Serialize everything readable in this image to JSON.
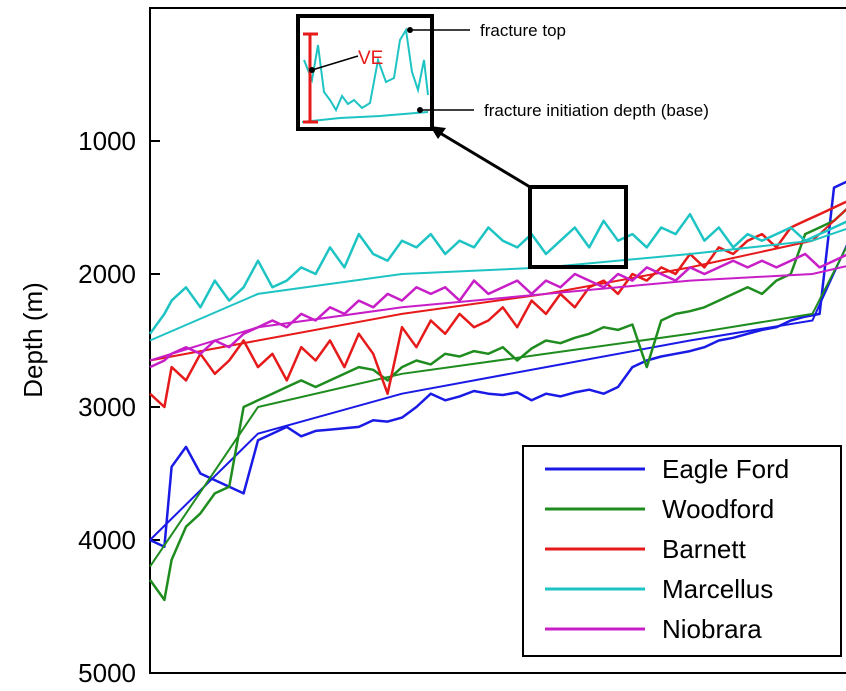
{
  "chart_data": {
    "type": "line",
    "ylabel": "Depth (m)",
    "ylim": [
      5000,
      0
    ],
    "y_inverted": true,
    "y_ticks": [
      1000,
      2000,
      3000,
      4000,
      5000
    ],
    "grid": false,
    "legend_position": "bottom-right",
    "x_range": [
      0,
      100
    ],
    "series": [
      {
        "name": "Eagle Ford",
        "color": "#1a1ae6",
        "x": [
          0,
          2,
          3,
          5,
          7,
          9,
          11,
          13,
          15,
          17,
          19,
          21,
          23,
          25,
          27,
          29,
          31,
          33,
          35,
          37,
          39,
          41,
          43,
          45,
          47,
          49,
          51,
          53,
          55,
          57,
          59,
          61,
          63,
          65,
          67,
          69,
          71,
          73,
          75,
          77,
          79,
          81,
          83,
          85,
          87,
          89,
          91,
          93,
          95,
          97,
          99,
          100
        ],
        "values": [
          4000,
          4050,
          3450,
          3300,
          3500,
          3550,
          3600,
          3650,
          3250,
          3200,
          3150,
          3220,
          3180,
          3170,
          3160,
          3150,
          3100,
          3110,
          3080,
          3000,
          2900,
          2950,
          2920,
          2880,
          2900,
          2910,
          2890,
          2950,
          2900,
          2920,
          2890,
          2870,
          2900,
          2850,
          2700,
          2650,
          2620,
          2600,
          2580,
          2550,
          2500,
          2480,
          2450,
          2420,
          2400,
          2350,
          2320,
          2300,
          1350,
          1300,
          1250,
          1000
        ],
        "trend": [
          4000,
          3200,
          2900,
          2700,
          2500,
          2350,
          1400
        ]
      },
      {
        "name": "Woodford",
        "color": "#1f8c1f",
        "x": [
          0,
          2,
          3,
          5,
          7,
          9,
          11,
          13,
          15,
          17,
          19,
          21,
          23,
          25,
          27,
          29,
          31,
          33,
          35,
          37,
          39,
          41,
          43,
          45,
          47,
          49,
          51,
          53,
          55,
          57,
          59,
          61,
          63,
          65,
          67,
          69,
          71,
          73,
          75,
          77,
          79,
          81,
          83,
          85,
          87,
          89,
          91,
          93,
          95,
          97,
          99,
          100
        ],
        "values": [
          4300,
          4450,
          4150,
          3900,
          3800,
          3650,
          3600,
          3000,
          2950,
          2900,
          2850,
          2800,
          2850,
          2800,
          2750,
          2700,
          2720,
          2800,
          2700,
          2650,
          2680,
          2600,
          2620,
          2580,
          2600,
          2550,
          2650,
          2560,
          2500,
          2520,
          2480,
          2450,
          2400,
          2420,
          2380,
          2700,
          2350,
          2300,
          2280,
          2250,
          2200,
          2150,
          2100,
          2150,
          2050,
          2000,
          1700,
          1650,
          1600,
          1500,
          1450,
          1400
        ],
        "trend": [
          4200,
          3000,
          2750,
          2600,
          2450,
          2300,
          1450
        ]
      },
      {
        "name": "Barnett",
        "color": "#e61a1a",
        "x": [
          0,
          2,
          3,
          5,
          7,
          9,
          11,
          13,
          15,
          17,
          19,
          21,
          23,
          25,
          27,
          29,
          31,
          33,
          35,
          37,
          39,
          41,
          43,
          45,
          47,
          49,
          51,
          53,
          55,
          57,
          59,
          61,
          63,
          65,
          67,
          69,
          71,
          73,
          75,
          77,
          79,
          81,
          83,
          85,
          87,
          89,
          91,
          93,
          95,
          97,
          99,
          100
        ],
        "values": [
          2900,
          3000,
          2700,
          2800,
          2600,
          2750,
          2650,
          2500,
          2700,
          2600,
          2800,
          2550,
          2650,
          2500,
          2700,
          2450,
          2600,
          2900,
          2400,
          2550,
          2350,
          2450,
          2300,
          2400,
          2350,
          2250,
          2400,
          2200,
          2300,
          2150,
          2250,
          2100,
          2050,
          2150,
          2000,
          2050,
          1950,
          2000,
          1850,
          1950,
          1800,
          1850,
          1750,
          1700,
          1800,
          1650,
          1600,
          1550,
          1500,
          1450,
          1400,
          1350
        ],
        "trend": [
          2650,
          2500,
          2300,
          2150,
          1950,
          1750,
          1350
        ]
      },
      {
        "name": "Marcellus",
        "color": "#1ec3c3",
        "x": [
          0,
          2,
          3,
          5,
          7,
          9,
          11,
          13,
          15,
          17,
          19,
          21,
          23,
          25,
          27,
          29,
          31,
          33,
          35,
          37,
          39,
          41,
          43,
          45,
          47,
          49,
          51,
          53,
          55,
          57,
          59,
          61,
          63,
          65,
          67,
          69,
          71,
          73,
          75,
          77,
          79,
          81,
          83,
          85,
          87,
          89,
          91,
          93,
          95,
          97,
          99,
          100
        ],
        "values": [
          2450,
          2300,
          2200,
          2100,
          2250,
          2050,
          2200,
          2100,
          1900,
          2100,
          2050,
          1950,
          2000,
          1800,
          1950,
          1700,
          1850,
          1900,
          1750,
          1800,
          1700,
          1850,
          1750,
          1800,
          1650,
          1750,
          1800,
          1700,
          1850,
          1750,
          1650,
          1800,
          1600,
          1750,
          1700,
          1800,
          1650,
          1700,
          1550,
          1750,
          1650,
          1800,
          1700,
          1750,
          1700,
          1650,
          1750,
          1700,
          1650,
          1600,
          1650,
          1600
        ],
        "trend": [
          2500,
          2150,
          2000,
          1950,
          1850,
          1750,
          1600
        ]
      },
      {
        "name": "Niobrara",
        "color": "#c81ec8",
        "x": [
          0,
          2,
          3,
          5,
          7,
          9,
          11,
          13,
          15,
          17,
          19,
          21,
          23,
          25,
          27,
          29,
          31,
          33,
          35,
          37,
          39,
          41,
          43,
          45,
          47,
          49,
          51,
          53,
          55,
          57,
          59,
          61,
          63,
          65,
          67,
          69,
          71,
          73,
          75,
          77,
          79,
          81,
          83,
          85,
          87,
          89,
          91,
          93,
          95,
          97,
          99,
          100
        ],
        "values": [
          2700,
          2650,
          2600,
          2550,
          2600,
          2500,
          2550,
          2450,
          2400,
          2350,
          2400,
          2300,
          2350,
          2250,
          2300,
          2200,
          2250,
          2150,
          2200,
          2100,
          2150,
          2100,
          2200,
          2050,
          2150,
          2100,
          2050,
          2150,
          2050,
          2100,
          2000,
          2050,
          2100,
          2000,
          2050,
          1950,
          2000,
          2050,
          1950,
          2000,
          1950,
          1900,
          1950,
          1900,
          1950,
          1900,
          1850,
          1950,
          1900,
          1850,
          1900,
          1850
        ],
        "trend": [
          2650,
          2400,
          2250,
          2150,
          2050,
          2000,
          1900
        ]
      }
    ],
    "annotations": {
      "ve": "VE",
      "fracture_top": "fracture top",
      "fracture_base": "fracture initiation depth (base)"
    }
  }
}
